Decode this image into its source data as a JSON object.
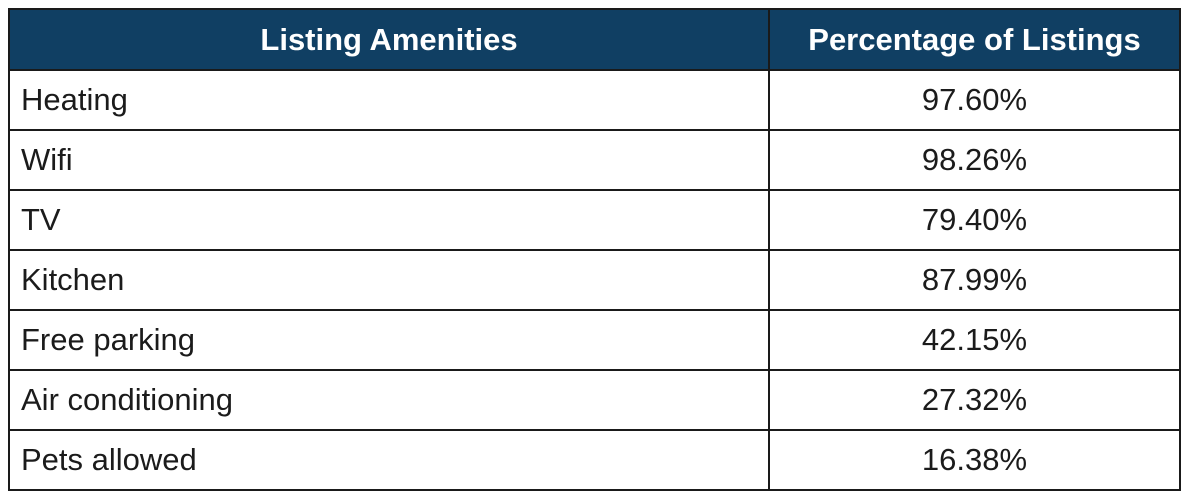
{
  "table": {
    "headers": [
      "Listing Amenities",
      "Percentage of Listings"
    ],
    "rows": [
      {
        "amenity": "Heating",
        "percentage": "97.60%"
      },
      {
        "amenity": "Wifi",
        "percentage": "98.26%"
      },
      {
        "amenity": "TV",
        "percentage": "79.40%"
      },
      {
        "amenity": "Kitchen",
        "percentage": "87.99%"
      },
      {
        "amenity": "Free parking",
        "percentage": "42.15%"
      },
      {
        "amenity": "Air conditioning",
        "percentage": "27.32%"
      },
      {
        "amenity": "Pets allowed",
        "percentage": "16.38%"
      }
    ]
  }
}
